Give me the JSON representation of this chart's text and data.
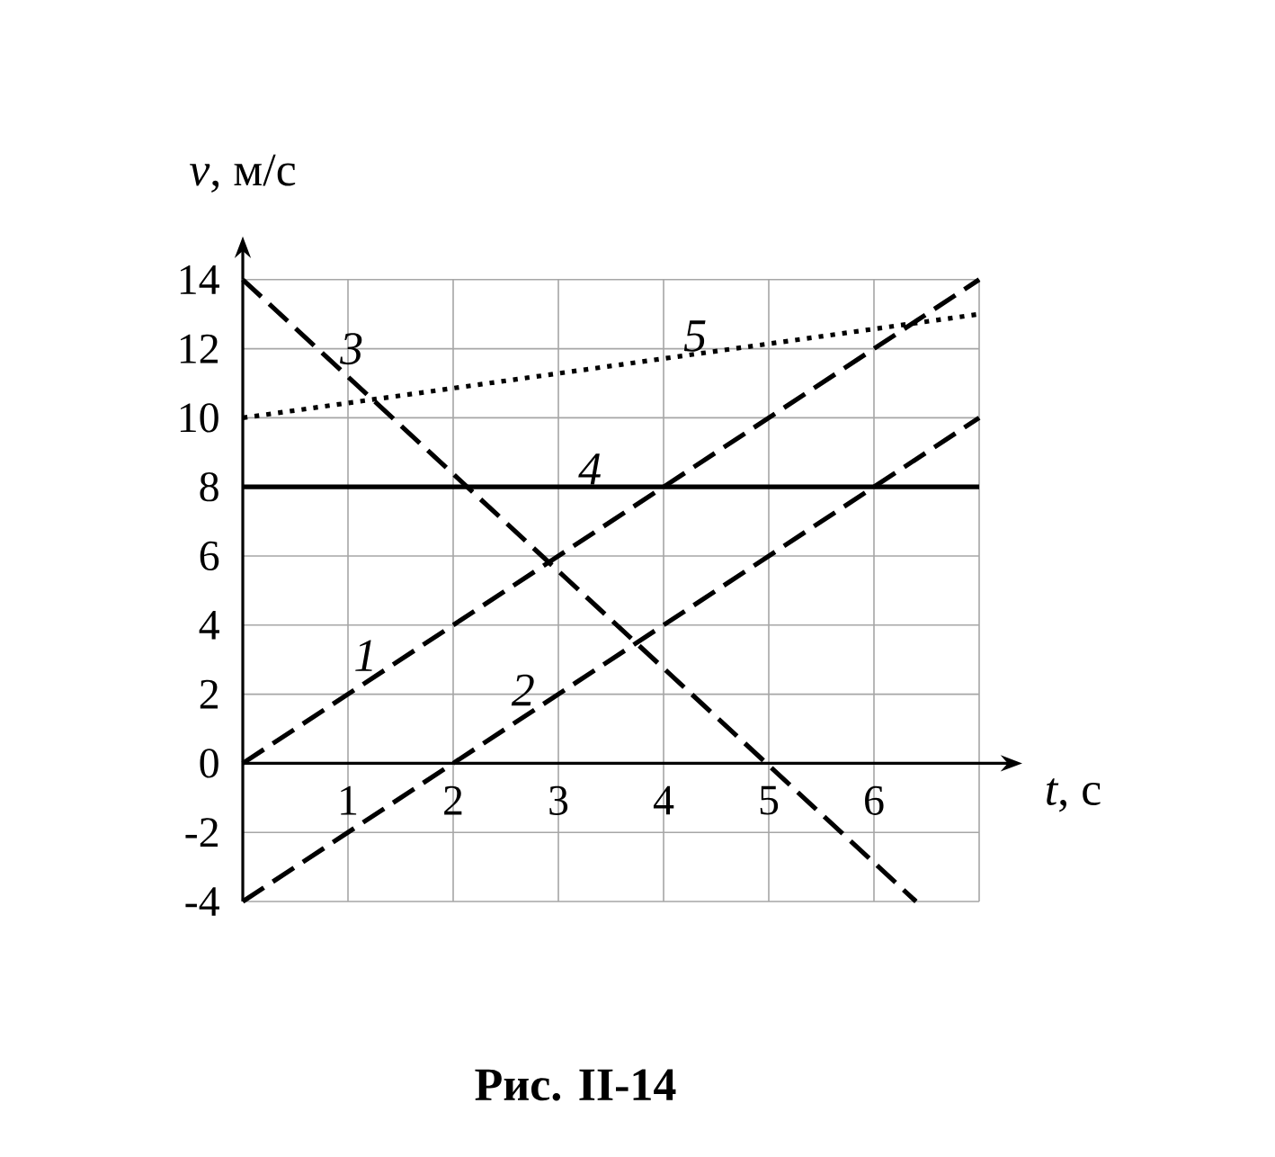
{
  "chart_data": {
    "type": "line",
    "xlabel": "*t*, с",
    "ylabel": "*v*, м/с",
    "xlim": [
      0,
      7
    ],
    "ylim": [
      -4,
      14
    ],
    "xticks": [
      1,
      2,
      3,
      4,
      5,
      6,
      {
        "value": 7,
        "label": null
      }
    ],
    "yticks": [
      -4,
      -2,
      0,
      2,
      4,
      6,
      8,
      10,
      12,
      14
    ],
    "grid": true,
    "marker": "none",
    "series": [
      {
        "name": "1",
        "color": "#000000",
        "line_style": "dashed",
        "x": [
          0,
          7
        ],
        "values": [
          0,
          14
        ]
      },
      {
        "name": "2",
        "color": "#000000",
        "line_style": "dashed",
        "x": [
          0,
          7
        ],
        "values": [
          -4,
          10
        ]
      },
      {
        "name": "3",
        "color": "#000000",
        "line_style": "dashed",
        "x": [
          0,
          6.4
        ],
        "values": [
          14,
          -4
        ]
      },
      {
        "name": "4",
        "color": "#000000",
        "line_style": "solid",
        "x": [
          0,
          7
        ],
        "values": [
          8,
          8
        ]
      },
      {
        "name": "5",
        "color": "#000000",
        "line_style": "dotted",
        "x": [
          0,
          7
        ],
        "values": [
          10,
          13
        ]
      }
    ],
    "annotations": [
      "Рис. II-14"
    ]
  }
}
